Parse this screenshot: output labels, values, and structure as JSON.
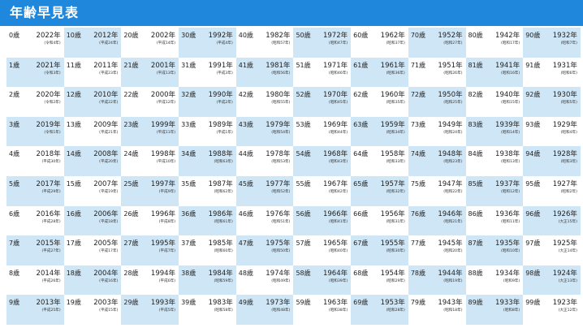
{
  "header": {
    "title": "年齢早見表"
  },
  "colors": {
    "header_bg": "#1f88dc",
    "cell_highlight": "#cfe6f6"
  },
  "cells": [
    {
      "age": "0歳",
      "year": "2022年",
      "era": "(令和4年)"
    },
    {
      "age": "1歳",
      "year": "2021年",
      "era": "(令和3年)"
    },
    {
      "age": "2歳",
      "year": "2020年",
      "era": "(令和2年)"
    },
    {
      "age": "3歳",
      "year": "2019年",
      "era": "(令和1年)"
    },
    {
      "age": "4歳",
      "year": "2018年",
      "era": "(平成30年)"
    },
    {
      "age": "5歳",
      "year": "2017年",
      "era": "(平成29年)"
    },
    {
      "age": "6歳",
      "year": "2016年",
      "era": "(平成28年)"
    },
    {
      "age": "7歳",
      "year": "2015年",
      "era": "(平成27年)"
    },
    {
      "age": "8歳",
      "year": "2014年",
      "era": "(平成26年)"
    },
    {
      "age": "9歳",
      "year": "2013年",
      "era": "(平成25年)"
    },
    {
      "age": "10歳",
      "year": "2012年",
      "era": "(平成24年)"
    },
    {
      "age": "11歳",
      "year": "2011年",
      "era": "(平成23年)"
    },
    {
      "age": "12歳",
      "year": "2010年",
      "era": "(平成22年)"
    },
    {
      "age": "13歳",
      "year": "2009年",
      "era": "(平成21年)"
    },
    {
      "age": "14歳",
      "year": "2008年",
      "era": "(平成20年)"
    },
    {
      "age": "15歳",
      "year": "2007年",
      "era": "(平成19年)"
    },
    {
      "age": "16歳",
      "year": "2006年",
      "era": "(平成18年)"
    },
    {
      "age": "17歳",
      "year": "2005年",
      "era": "(平成17年)"
    },
    {
      "age": "18歳",
      "year": "2004年",
      "era": "(平成16年)"
    },
    {
      "age": "19歳",
      "year": "2003年",
      "era": "(平成15年)"
    },
    {
      "age": "20歳",
      "year": "2002年",
      "era": "(平成14年)"
    },
    {
      "age": "21歳",
      "year": "2001年",
      "era": "(平成13年)"
    },
    {
      "age": "22歳",
      "year": "2000年",
      "era": "(平成12年)"
    },
    {
      "age": "23歳",
      "year": "1999年",
      "era": "(平成11年)"
    },
    {
      "age": "24歳",
      "year": "1998年",
      "era": "(平成10年)"
    },
    {
      "age": "25歳",
      "year": "1997年",
      "era": "(平成9年)"
    },
    {
      "age": "26歳",
      "year": "1996年",
      "era": "(平成8年)"
    },
    {
      "age": "27歳",
      "year": "1995年",
      "era": "(平成7年)"
    },
    {
      "age": "28歳",
      "year": "1994年",
      "era": "(平成6年)"
    },
    {
      "age": "29歳",
      "year": "1993年",
      "era": "(平成5年)"
    },
    {
      "age": "30歳",
      "year": "1992年",
      "era": "(平成4年)"
    },
    {
      "age": "31歳",
      "year": "1991年",
      "era": "(平成3年)"
    },
    {
      "age": "32歳",
      "year": "1990年",
      "era": "(平成2年)"
    },
    {
      "age": "33歳",
      "year": "1989年",
      "era": "(平成1年)"
    },
    {
      "age": "34歳",
      "year": "1988年",
      "era": "(昭和63年)"
    },
    {
      "age": "35歳",
      "year": "1987年",
      "era": "(昭和62年)"
    },
    {
      "age": "36歳",
      "year": "1986年",
      "era": "(昭和61年)"
    },
    {
      "age": "37歳",
      "year": "1985年",
      "era": "(昭和60年)"
    },
    {
      "age": "38歳",
      "year": "1984年",
      "era": "(昭和59年)"
    },
    {
      "age": "39歳",
      "year": "1983年",
      "era": "(昭和58年)"
    },
    {
      "age": "40歳",
      "year": "1982年",
      "era": "(昭和57年)"
    },
    {
      "age": "41歳",
      "year": "1981年",
      "era": "(昭和56年)"
    },
    {
      "age": "42歳",
      "year": "1980年",
      "era": "(昭和55年)"
    },
    {
      "age": "43歳",
      "year": "1979年",
      "era": "(昭和54年)"
    },
    {
      "age": "44歳",
      "year": "1978年",
      "era": "(昭和53年)"
    },
    {
      "age": "45歳",
      "year": "1977年",
      "era": "(昭和52年)"
    },
    {
      "age": "46歳",
      "year": "1976年",
      "era": "(昭和51年)"
    },
    {
      "age": "47歳",
      "year": "1975年",
      "era": "(昭和50年)"
    },
    {
      "age": "48歳",
      "year": "1974年",
      "era": "(昭和49年)"
    },
    {
      "age": "49歳",
      "year": "1973年",
      "era": "(昭和48年)"
    },
    {
      "age": "50歳",
      "year": "1972年",
      "era": "(昭和47年)"
    },
    {
      "age": "51歳",
      "year": "1971年",
      "era": "(昭和46年)"
    },
    {
      "age": "52歳",
      "year": "1970年",
      "era": "(昭和45年)"
    },
    {
      "age": "53歳",
      "year": "1969年",
      "era": "(昭和44年)"
    },
    {
      "age": "54歳",
      "year": "1968年",
      "era": "(昭和43年)"
    },
    {
      "age": "55歳",
      "year": "1967年",
      "era": "(昭和42年)"
    },
    {
      "age": "56歳",
      "year": "1966年",
      "era": "(昭和41年)"
    },
    {
      "age": "57歳",
      "year": "1965年",
      "era": "(昭和40年)"
    },
    {
      "age": "58歳",
      "year": "1964年",
      "era": "(昭和39年)"
    },
    {
      "age": "59歳",
      "year": "1963年",
      "era": "(昭和38年)"
    },
    {
      "age": "60歳",
      "year": "1962年",
      "era": "(昭和37年)"
    },
    {
      "age": "61歳",
      "year": "1961年",
      "era": "(昭和36年)"
    },
    {
      "age": "62歳",
      "year": "1960年",
      "era": "(昭和35年)"
    },
    {
      "age": "63歳",
      "year": "1959年",
      "era": "(昭和34年)"
    },
    {
      "age": "64歳",
      "year": "1958年",
      "era": "(昭和33年)"
    },
    {
      "age": "65歳",
      "year": "1957年",
      "era": "(昭和32年)"
    },
    {
      "age": "66歳",
      "year": "1956年",
      "era": "(昭和31年)"
    },
    {
      "age": "67歳",
      "year": "1955年",
      "era": "(昭和30年)"
    },
    {
      "age": "68歳",
      "year": "1954年",
      "era": "(昭和29年)"
    },
    {
      "age": "69歳",
      "year": "1953年",
      "era": "(昭和28年)"
    },
    {
      "age": "70歳",
      "year": "1952年",
      "era": "(昭和27年)"
    },
    {
      "age": "71歳",
      "year": "1951年",
      "era": "(昭和26年)"
    },
    {
      "age": "72歳",
      "year": "1950年",
      "era": "(昭和25年)"
    },
    {
      "age": "73歳",
      "year": "1949年",
      "era": "(昭和24年)"
    },
    {
      "age": "74歳",
      "year": "1948年",
      "era": "(昭和23年)"
    },
    {
      "age": "75歳",
      "year": "1947年",
      "era": "(昭和22年)"
    },
    {
      "age": "76歳",
      "year": "1946年",
      "era": "(昭和21年)"
    },
    {
      "age": "77歳",
      "year": "1945年",
      "era": "(昭和20年)"
    },
    {
      "age": "78歳",
      "year": "1944年",
      "era": "(昭和19年)"
    },
    {
      "age": "79歳",
      "year": "1943年",
      "era": "(昭和18年)"
    },
    {
      "age": "80歳",
      "year": "1942年",
      "era": "(昭和17年)"
    },
    {
      "age": "81歳",
      "year": "1941年",
      "era": "(昭和16年)"
    },
    {
      "age": "82歳",
      "year": "1940年",
      "era": "(昭和15年)"
    },
    {
      "age": "83歳",
      "year": "1939年",
      "era": "(昭和14年)"
    },
    {
      "age": "84歳",
      "year": "1938年",
      "era": "(昭和13年)"
    },
    {
      "age": "85歳",
      "year": "1937年",
      "era": "(昭和12年)"
    },
    {
      "age": "86歳",
      "year": "1936年",
      "era": "(昭和11年)"
    },
    {
      "age": "87歳",
      "year": "1935年",
      "era": "(昭和10年)"
    },
    {
      "age": "88歳",
      "year": "1934年",
      "era": "(昭和9年)"
    },
    {
      "age": "89歳",
      "year": "1933年",
      "era": "(昭和8年)"
    },
    {
      "age": "90歳",
      "year": "1932年",
      "era": "(昭和7年)"
    },
    {
      "age": "91歳",
      "year": "1931年",
      "era": "(昭和6年)"
    },
    {
      "age": "92歳",
      "year": "1930年",
      "era": "(昭和5年)"
    },
    {
      "age": "93歳",
      "year": "1929年",
      "era": "(昭和4年)"
    },
    {
      "age": "94歳",
      "year": "1928年",
      "era": "(昭和3年)"
    },
    {
      "age": "95歳",
      "year": "1927年",
      "era": "(昭和2年)"
    },
    {
      "age": "96歳",
      "year": "1926年",
      "era": "(大正15年)"
    },
    {
      "age": "97歳",
      "year": "1925年",
      "era": "(大正14年)"
    },
    {
      "age": "98歳",
      "year": "1924年",
      "era": "(大正13年)"
    },
    {
      "age": "99歳",
      "year": "1923年",
      "era": "(大正12年)"
    }
  ]
}
